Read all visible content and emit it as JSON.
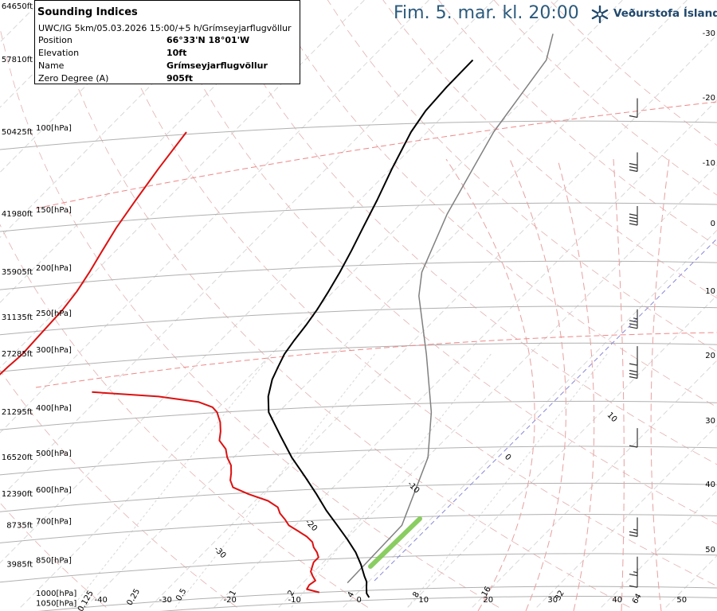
{
  "header": {
    "title": "Fim. 5. mar. kl. 20:00",
    "brand": "Veðurstofa Íslands",
    "brand_logo_icon": "snowflake-logo-icon",
    "brand_color": "#20486c"
  },
  "info_box": {
    "title": "Sounding Indices",
    "run": "UWC/IG 5km/05.03.2026 15:00/+5 h/Grímseyjarflugvöllur",
    "rows": [
      {
        "label": "Position",
        "value": "66°33'N 18°01'W"
      },
      {
        "label": "Elevation",
        "value": "10ft"
      },
      {
        "label": "Name",
        "value": "Grímseyjarflugvöllur"
      },
      {
        "label": "Zero Degree (A)",
        "value": "905ft"
      }
    ]
  },
  "chart_data": {
    "type": "line",
    "diagram": "skew-T log-p",
    "y_axis_pressure": [
      {
        "p": 100,
        "label": "100[hPa]",
        "alt": "50425ft"
      },
      {
        "p": 150,
        "label": "150[hPa]",
        "alt": "41980ft"
      },
      {
        "p": 200,
        "label": "200[hPa]",
        "alt": "35905ft"
      },
      {
        "p": 250,
        "label": "250[hPa]",
        "alt": "31135ft"
      },
      {
        "p": 300,
        "label": "300[hPa]",
        "alt": "27285ft"
      },
      {
        "p": 400,
        "label": "400[hPa]",
        "alt": "21295ft"
      },
      {
        "p": 500,
        "label": "500[hPa]",
        "alt": "16520ft"
      },
      {
        "p": 600,
        "label": "600[hPa]",
        "alt": "12390ft"
      },
      {
        "p": 700,
        "label": "700[hPa]",
        "alt": "8735ft"
      },
      {
        "p": 850,
        "label": "850[hPa]",
        "alt": "3985ft"
      },
      {
        "p": 1000,
        "label": "1000[hPa]",
        "alt": ""
      },
      {
        "p": 1050,
        "label": "1050[hPa]",
        "alt": ""
      }
    ],
    "top_altitude_label": "64650ft",
    "top_altitude_label_2": "57810ft",
    "isotherm_labels_bottom": [
      "-40",
      "-30",
      "-20",
      "-10",
      "0",
      "10",
      "20",
      "30",
      "40",
      "50"
    ],
    "isotherm_labels_inside": [
      "-30",
      "-20",
      "-10",
      "0",
      "10",
      "20",
      "30"
    ],
    "right_axis_labels": [
      "-30",
      "-20",
      "-10",
      "0",
      "10",
      "20",
      "30",
      "40",
      "50"
    ],
    "mixing_ratio_labels": [
      "0.125",
      "0.25",
      "0.5",
      "1",
      "2",
      "4",
      "8",
      "16",
      "32",
      "64"
    ],
    "series": [
      {
        "kind": "temperature",
        "color": "#000000",
        "points": [
          [
            1000,
            2.5
          ],
          [
            980,
            1.5
          ],
          [
            950,
            0.5
          ],
          [
            925,
            -0.3
          ],
          [
            900,
            -1.5
          ],
          [
            850,
            -3.8
          ],
          [
            800,
            -6.5
          ],
          [
            750,
            -9.8
          ],
          [
            700,
            -13.5
          ],
          [
            650,
            -17.5
          ],
          [
            600,
            -21.5
          ],
          [
            550,
            -26
          ],
          [
            500,
            -31
          ],
          [
            450,
            -36
          ],
          [
            400,
            -41.5
          ],
          [
            370,
            -44
          ],
          [
            340,
            -46
          ],
          [
            320,
            -47
          ],
          [
            300,
            -48
          ],
          [
            280,
            -48.6
          ],
          [
            260,
            -49.1
          ],
          [
            240,
            -49.8
          ],
          [
            220,
            -50.8
          ],
          [
            200,
            -52
          ],
          [
            180,
            -53.5
          ],
          [
            160,
            -55.3
          ],
          [
            140,
            -57.3
          ],
          [
            120,
            -59.8
          ],
          [
            100,
            -62.5
          ],
          [
            90,
            -63.5
          ],
          [
            80,
            -63.9
          ],
          [
            70,
            -64
          ]
        ]
      },
      {
        "kind": "dewpoint",
        "color": "#dd1111",
        "points": [
          [
            975,
            -6
          ],
          [
            960,
            -8.4
          ],
          [
            940,
            -8.7
          ],
          [
            920,
            -8.4
          ],
          [
            900,
            -9.5
          ],
          [
            880,
            -10.5
          ],
          [
            860,
            -11
          ],
          [
            840,
            -11.5
          ],
          [
            820,
            -11.5
          ],
          [
            800,
            -12.5
          ],
          [
            780,
            -13.8
          ],
          [
            760,
            -14.8
          ],
          [
            740,
            -16.5
          ],
          [
            720,
            -18.7
          ],
          [
            700,
            -21
          ],
          [
            680,
            -22.5
          ],
          [
            660,
            -24.2
          ],
          [
            640,
            -25.5
          ],
          [
            620,
            -28
          ],
          [
            600,
            -32
          ],
          [
            580,
            -35.5
          ],
          [
            560,
            -37
          ],
          [
            540,
            -38
          ],
          [
            520,
            -39.2
          ],
          [
            500,
            -41
          ],
          [
            480,
            -42.5
          ],
          [
            460,
            -44.8
          ],
          [
            440,
            -46
          ],
          [
            420,
            -47.5
          ],
          [
            410,
            -48.5
          ],
          [
            400,
            -49.5
          ],
          [
            390,
            -51
          ],
          [
            380,
            -54
          ],
          [
            370,
            -61
          ],
          [
            362,
            -72
          ]
        ]
      },
      {
        "kind": "upper-dewpoint",
        "color": "#dd1111",
        "points": [
          [
            335,
            -89
          ],
          [
            320,
            -88.9
          ],
          [
            300,
            -88.6
          ],
          [
            280,
            -88.8
          ],
          [
            260,
            -89
          ],
          [
            240,
            -89.2
          ],
          [
            220,
            -89.8
          ],
          [
            200,
            -90.8
          ],
          [
            180,
            -92.1
          ],
          [
            160,
            -93.5
          ],
          [
            140,
            -94.7
          ],
          [
            120,
            -96
          ],
          [
            100,
            -97.3
          ]
        ]
      }
    ],
    "parcel_curve": {
      "color": "#808080",
      "points": [
        [
          930,
          -3.1
        ],
        [
          700,
          -3.5
        ],
        [
          500,
          -9.9
        ],
        [
          400,
          -16.3
        ],
        [
          300,
          -26
        ],
        [
          225,
          -36.1
        ],
        [
          200,
          -39.3
        ],
        [
          150,
          -44.3
        ],
        [
          100,
          -49.7
        ],
        [
          70,
          -52.6
        ],
        [
          61.5,
          -55.6
        ]
      ]
    },
    "wind_barbs": [
      {
        "p": 88,
        "speed_kt": 10,
        "dir_deg": 240
      },
      {
        "p": 115,
        "speed_kt": 30,
        "dir_deg": 250
      },
      {
        "p": 150,
        "speed_kt": 40,
        "dir_deg": 250
      },
      {
        "p": 250,
        "speed_kt": 35,
        "dir_deg": 260
      },
      {
        "p": 300,
        "speed_kt": 10,
        "dir_deg": 240
      },
      {
        "p": 320,
        "speed_kt": 30,
        "dir_deg": 250
      },
      {
        "p": 450,
        "speed_kt": 10,
        "dir_deg": 270
      },
      {
        "p": 700,
        "speed_kt": 25,
        "dir_deg": 290
      },
      {
        "p": 850,
        "speed_kt": 15,
        "dir_deg": 300
      },
      {
        "p": 900,
        "speed_kt": 10,
        "dir_deg": 300
      }
    ],
    "colors": {
      "isobar": "#b0b0b0",
      "isotherm": "#d8d8d8",
      "dry_adiabat": "#e4b0b0",
      "moist_adiabat": "#e8a0a0",
      "mixing_ratio": "#d8d8d8",
      "zero_isotherm": "#8888dd",
      "tropopause": "#ee8888",
      "lcl_marker": "#7ec850"
    }
  }
}
